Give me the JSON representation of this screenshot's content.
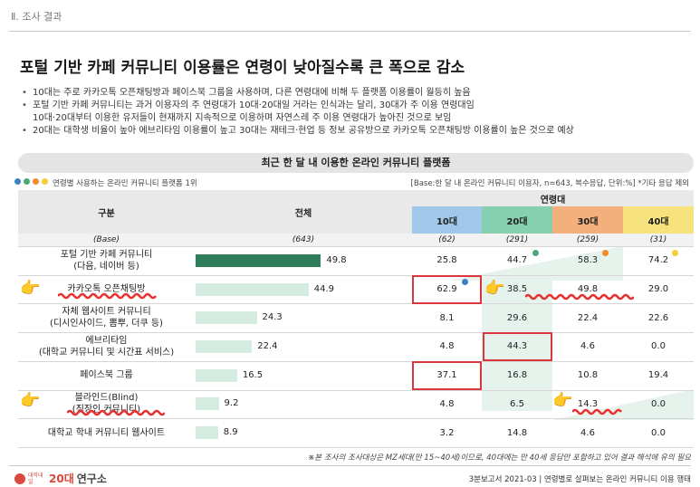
{
  "header": {
    "section": "Ⅱ. 조사 결과"
  },
  "title": "포털 기반 카페 커뮤니티 이용률은 연령이 낮아질수록 큰 폭으로 감소",
  "bullets": [
    "10대는 주로 카카오톡 오픈채팅방과 페이스북 그룹을 사용하며, 다른 연령대에 비해 두 플랫폼 이용률이 월등히 높음",
    "포털 기반 카페 커뮤니티는 과거 이용자의 주 연령대가 10대·20대일 거라는 인식과는 달리, 30대가 주 이용 연령대임",
    "10대·20대부터 이용한 유저들이 현재까지 지속적으로 이용하며 자연스레 주 이용 연령대가 높아진 것으로 보임",
    "20대는 대학생 비율이 높아 에브리타임 이용률이 높고 30대는 재테크·현업 등 정보 공유방으로 카카오톡 오픈채팅방 이용률이 높은 것으로 예상"
  ],
  "table": {
    "title": "최근 한 달 내 이용한 온라인 커뮤니티 플랫폼",
    "legend": "연령별 사용하는 온라인 커뮤니티 플랫폼 1위",
    "base_note": "[Base:한 달 내 온라인 커뮤니티 이용자, n=643, 복수응답, 단위:%] *기타 응답 제외",
    "col_category": "구분",
    "col_total": "전체",
    "col_age_group": "연령대",
    "age_columns": [
      "10대",
      "20대",
      "30대",
      "40대"
    ],
    "base_row": {
      "label": "(Base)",
      "total": "(643)",
      "ages": [
        "(62)",
        "(291)",
        "(259)",
        "(31)"
      ]
    },
    "rows": [
      {
        "label1": "포털 기반 카페 커뮤니티",
        "label2": "(다음, 네이버 등)",
        "total": 49.8,
        "ages": [
          "25.8",
          "44.7",
          "58.3",
          "74.2"
        ]
      },
      {
        "label1": "카카오톡 오픈채팅방",
        "label2": "",
        "total": 44.9,
        "ages": [
          "62.9",
          "38.5",
          "49.8",
          "29.0"
        ]
      },
      {
        "label1": "자체 웹사이트 커뮤니티",
        "label2": "(디시인사이드, 뽐뿌, 더쿠 등)",
        "total": 24.3,
        "ages": [
          "8.1",
          "29.6",
          "22.4",
          "22.6"
        ]
      },
      {
        "label1": "에브리타임",
        "label2": "(대학교 커뮤니티 및 시간표 서비스)",
        "total": 22.4,
        "ages": [
          "4.8",
          "44.3",
          "4.6",
          "0.0"
        ]
      },
      {
        "label1": "페이스북 그룹",
        "label2": "",
        "total": 16.5,
        "ages": [
          "37.1",
          "16.8",
          "10.8",
          "19.4"
        ]
      },
      {
        "label1": "블라인드(Blind)",
        "label2": "(직장인 커뮤니티)",
        "total": 9.2,
        "ages": [
          "4.8",
          "6.5",
          "14.3",
          "0.0"
        ]
      },
      {
        "label1": "대학교 학내 커뮤니티 웹사이트",
        "label2": "",
        "total": 8.9,
        "ages": [
          "3.2",
          "14.8",
          "4.6",
          "0.0"
        ]
      }
    ]
  },
  "footnote": "※본 조사의 조사대상은 MZ세대(만 15~40세)이므로, 40대에는 만 40세 응답만 포함하고 있어 결과 해석에 유의 필요",
  "logo": {
    "small": "대학내일",
    "brand": "20대",
    "rest": "연구소"
  },
  "footer": "3분보고서 2021-03 | 연령별로 살펴보는 온라인 커뮤니티 이용 행태",
  "colors": {
    "age_headers": [
      "#9fc8ea",
      "#86d0b0",
      "#f4b07c",
      "#f7e37d"
    ],
    "legend_dots": [
      "#3a82c4",
      "#4aa876",
      "#f08a2a",
      "#f4cf3a"
    ],
    "bar_top": "#2e7d5a",
    "bar_other": "#d4ece0",
    "highlight": "#d9363e",
    "bg_shade": "#e6f3ec"
  }
}
